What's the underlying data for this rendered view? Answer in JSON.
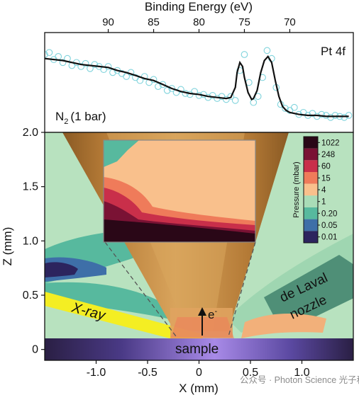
{
  "chart_data": [
    {
      "type": "line",
      "title": "",
      "xlabel": "Binding Energy (eV)",
      "ylabel": "",
      "xlim": [
        97,
        63
      ],
      "x_reversed": true,
      "x_ticks": [
        90,
        85,
        80,
        75,
        70
      ],
      "annotations": [
        "Pt 4f",
        "N",
        "2",
        "(1 bar)"
      ],
      "legend": "none",
      "grid": false,
      "series": [
        {
          "style": "scatter",
          "marker_color": "#7fd3dc",
          "x": [
            97,
            96.5,
            96,
            95.5,
            95,
            94.5,
            94,
            93.5,
            93,
            92.5,
            92,
            91.5,
            91,
            90.5,
            90,
            89.5,
            89,
            88.5,
            88,
            87.5,
            87,
            86.5,
            86,
            85.5,
            85,
            84.5,
            84,
            83.5,
            83,
            82.5,
            82,
            81.5,
            81,
            80.5,
            80,
            79.5,
            79,
            78.5,
            78,
            77.5,
            77,
            76.5,
            76,
            75.5,
            75,
            74.5,
            74,
            73.5,
            73,
            72.5,
            72,
            71.5,
            71,
            70.5,
            70,
            69.5,
            69,
            68.5,
            68,
            67.5,
            67,
            66.5,
            66,
            65.5,
            65,
            64.5,
            64,
            63.5
          ],
          "y": [
            0.78,
            0.8,
            0.73,
            0.76,
            0.7,
            0.74,
            0.67,
            0.7,
            0.66,
            0.69,
            0.64,
            0.68,
            0.66,
            0.63,
            0.66,
            0.6,
            0.62,
            0.59,
            0.56,
            0.6,
            0.55,
            0.52,
            0.56,
            0.5,
            0.53,
            0.46,
            0.48,
            0.42,
            0.44,
            0.4,
            0.43,
            0.39,
            0.38,
            0.41,
            0.37,
            0.38,
            0.35,
            0.37,
            0.34,
            0.36,
            0.33,
            0.36,
            0.32,
            0.62,
            0.78,
            0.5,
            0.3,
            0.36,
            0.55,
            0.82,
            0.74,
            0.45,
            0.28,
            0.24,
            0.22,
            0.25,
            0.18,
            0.2,
            0.17,
            0.19,
            0.16,
            0.18,
            0.17,
            0.15,
            0.17,
            0.16,
            0.15,
            0.17
          ]
        },
        {
          "style": "line",
          "line_color": "#111111",
          "x": [
            97,
            95,
            93,
            91,
            90,
            89,
            88,
            87,
            86,
            85,
            84,
            83,
            82,
            81,
            80,
            79,
            78,
            77,
            76.5,
            76,
            75.8,
            75.5,
            75.2,
            75,
            74.6,
            74.2,
            74,
            73.6,
            73.2,
            72.8,
            72.4,
            72,
            71.6,
            71.2,
            70.8,
            70.4,
            70,
            69.5,
            69,
            68,
            67,
            66,
            65,
            64,
            63.5
          ],
          "y": [
            0.74,
            0.72,
            0.68,
            0.66,
            0.65,
            0.62,
            0.6,
            0.57,
            0.54,
            0.52,
            0.48,
            0.44,
            0.41,
            0.39,
            0.38,
            0.36,
            0.35,
            0.34,
            0.35,
            0.45,
            0.6,
            0.7,
            0.66,
            0.55,
            0.4,
            0.33,
            0.34,
            0.42,
            0.6,
            0.72,
            0.76,
            0.7,
            0.52,
            0.36,
            0.26,
            0.22,
            0.2,
            0.19,
            0.18,
            0.17,
            0.17,
            0.16,
            0.16,
            0.16,
            0.16
          ]
        }
      ]
    },
    {
      "type": "heatmap",
      "title": "",
      "xlabel": "X (mm)",
      "ylabel": "Z (mm)",
      "xlim": [
        -1.5,
        1.5
      ],
      "ylim": [
        -0.1,
        2.0
      ],
      "x_ticks": [
        -1.0,
        -0.5,
        0,
        0.5,
        1.0
      ],
      "x_tick_labels": [
        "-1.0",
        "-0.5",
        "0",
        "0.5",
        "1.0"
      ],
      "y_ticks": [
        0,
        0.5,
        1.0,
        1.5,
        2.0
      ],
      "y_tick_labels": [
        "0",
        "0.5",
        "1.0",
        "1.5",
        "2.0"
      ],
      "colorbar": {
        "label": "Pressure (mbar)",
        "placement": "top-right inside plot",
        "levels": [
          "1022",
          "248",
          "60",
          "15",
          "4",
          "1",
          "0.20",
          "0.05",
          "0.01"
        ],
        "colors": [
          "#2a0717",
          "#7a1234",
          "#c92f4a",
          "#ef7b5a",
          "#f9c08c",
          "#a9dcb7",
          "#57b99e",
          "#3e6fa8",
          "#2c245e"
        ]
      },
      "regions": {
        "background_color": "#b8e2bf",
        "nozzle_color": "#4f8f77",
        "cone_colors": [
          "#8b5a22",
          "#c58a3f",
          "#e1b067"
        ],
        "xray_color": "#f4ee23",
        "sample_colors": [
          "#2a1f44",
          "#9b7fe0"
        ]
      },
      "annotations": [
        "X-ray",
        "de Laval",
        "nozzle",
        "sample",
        "e",
        "-"
      ]
    }
  ],
  "watermark": "公众号 · Photon Science 光子科学"
}
